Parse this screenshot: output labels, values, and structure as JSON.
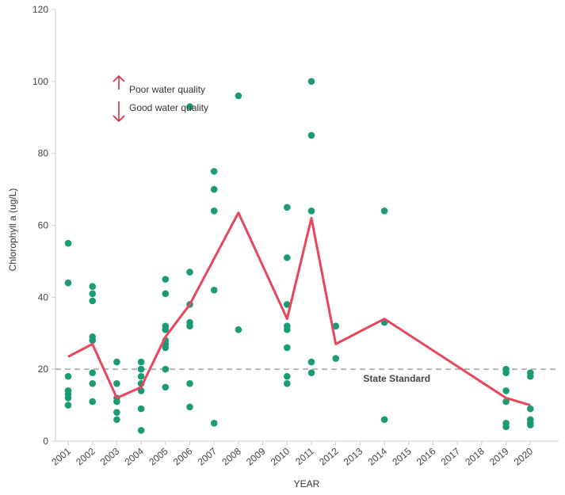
{
  "chart_data": {
    "type": "scatter",
    "xlabel": "YEAR",
    "ylabel": "Chlorophyll a (ug/L)",
    "ylim": [
      0,
      120
    ],
    "yticks": [
      0,
      20,
      40,
      60,
      80,
      100,
      120
    ],
    "categories": [
      "2001",
      "2002",
      "2003",
      "2004",
      "2005",
      "2006",
      "2007",
      "2008",
      "2009",
      "2010",
      "2011",
      "2012",
      "2013",
      "2014",
      "2015",
      "2016",
      "2017",
      "2018",
      "2019",
      "2020"
    ],
    "grid": false,
    "points": [
      {
        "x": "2001",
        "y": 55
      },
      {
        "x": "2001",
        "y": 44
      },
      {
        "x": "2001",
        "y": 18
      },
      {
        "x": "2001",
        "y": 14
      },
      {
        "x": "2001",
        "y": 13
      },
      {
        "x": "2001",
        "y": 12
      },
      {
        "x": "2001",
        "y": 10
      },
      {
        "x": "2002",
        "y": 43
      },
      {
        "x": "2002",
        "y": 41
      },
      {
        "x": "2002",
        "y": 39
      },
      {
        "x": "2002",
        "y": 29
      },
      {
        "x": "2002",
        "y": 28
      },
      {
        "x": "2002",
        "y": 19
      },
      {
        "x": "2002",
        "y": 16
      },
      {
        "x": "2002",
        "y": 11
      },
      {
        "x": "2003",
        "y": 22
      },
      {
        "x": "2003",
        "y": 16
      },
      {
        "x": "2003",
        "y": 12
      },
      {
        "x": "2003",
        "y": 11
      },
      {
        "x": "2003",
        "y": 8
      },
      {
        "x": "2003",
        "y": 6
      },
      {
        "x": "2004",
        "y": 22
      },
      {
        "x": "2004",
        "y": 20
      },
      {
        "x": "2004",
        "y": 18
      },
      {
        "x": "2004",
        "y": 16
      },
      {
        "x": "2004",
        "y": 14
      },
      {
        "x": "2004",
        "y": 9
      },
      {
        "x": "2004",
        "y": 3
      },
      {
        "x": "2005",
        "y": 45
      },
      {
        "x": "2005",
        "y": 41
      },
      {
        "x": "2005",
        "y": 32
      },
      {
        "x": "2005",
        "y": 31
      },
      {
        "x": "2005",
        "y": 28
      },
      {
        "x": "2005",
        "y": 27
      },
      {
        "x": "2005",
        "y": 26
      },
      {
        "x": "2005",
        "y": 20
      },
      {
        "x": "2005",
        "y": 15
      },
      {
        "x": "2006",
        "y": 93
      },
      {
        "x": "2006",
        "y": 47
      },
      {
        "x": "2006",
        "y": 38
      },
      {
        "x": "2006",
        "y": 33
      },
      {
        "x": "2006",
        "y": 32
      },
      {
        "x": "2006",
        "y": 16
      },
      {
        "x": "2006",
        "y": 9.5
      },
      {
        "x": "2007",
        "y": 75
      },
      {
        "x": "2007",
        "y": 70
      },
      {
        "x": "2007",
        "y": 64
      },
      {
        "x": "2007",
        "y": 42
      },
      {
        "x": "2007",
        "y": 5
      },
      {
        "x": "2008",
        "y": 96
      },
      {
        "x": "2008",
        "y": 31
      },
      {
        "x": "2010",
        "y": 65
      },
      {
        "x": "2010",
        "y": 51
      },
      {
        "x": "2010",
        "y": 38
      },
      {
        "x": "2010",
        "y": 32
      },
      {
        "x": "2010",
        "y": 31
      },
      {
        "x": "2010",
        "y": 26
      },
      {
        "x": "2010",
        "y": 18
      },
      {
        "x": "2010",
        "y": 16
      },
      {
        "x": "2011",
        "y": 100
      },
      {
        "x": "2011",
        "y": 85
      },
      {
        "x": "2011",
        "y": 64
      },
      {
        "x": "2011",
        "y": 22
      },
      {
        "x": "2011",
        "y": 19
      },
      {
        "x": "2012",
        "y": 32
      },
      {
        "x": "2012",
        "y": 23
      },
      {
        "x": "2014",
        "y": 64
      },
      {
        "x": "2014",
        "y": 33
      },
      {
        "x": "2014",
        "y": 6
      },
      {
        "x": "2019",
        "y": 20
      },
      {
        "x": "2019",
        "y": 19
      },
      {
        "x": "2019",
        "y": 14
      },
      {
        "x": "2019",
        "y": 11
      },
      {
        "x": "2019",
        "y": 5
      },
      {
        "x": "2019",
        "y": 4
      },
      {
        "x": "2020",
        "y": 19
      },
      {
        "x": "2020",
        "y": 18
      },
      {
        "x": "2020",
        "y": 9
      },
      {
        "x": "2020",
        "y": 6
      },
      {
        "x": "2020",
        "y": 5
      },
      {
        "x": "2020",
        "y": 4.5
      }
    ],
    "trend_line": [
      {
        "x": "2001",
        "y": 23.5
      },
      {
        "x": "2002",
        "y": 27
      },
      {
        "x": "2003",
        "y": 12
      },
      {
        "x": "2004",
        "y": 15
      },
      {
        "x": "2005",
        "y": 29
      },
      {
        "x": "2006",
        "y": 38
      },
      {
        "x": "2008",
        "y": 63.5
      },
      {
        "x": "2010",
        "y": 34
      },
      {
        "x": "2011",
        "y": 62
      },
      {
        "x": "2012",
        "y": 27
      },
      {
        "x": "2014",
        "y": 34
      },
      {
        "x": "2019",
        "y": 12
      },
      {
        "x": "2020",
        "y": 10
      }
    ],
    "state_standard": {
      "y": 20,
      "label": "State Standard"
    },
    "legend": {
      "poor": "Poor water quality",
      "good": "Good water quality"
    },
    "colors": {
      "points": "#1a9a75",
      "trend": "#e8465a",
      "standard": "#aaaaaa",
      "arrow": "#d0323f",
      "axis": "#cccccc"
    }
  }
}
